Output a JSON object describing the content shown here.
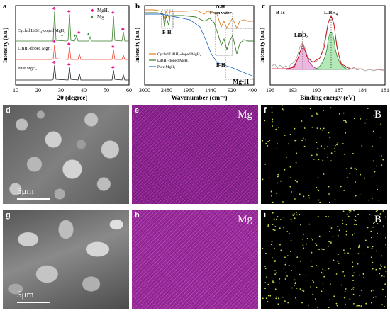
{
  "panels": {
    "a": {
      "label": "a",
      "ylabel": "Intensity (a.u.)",
      "xlabel": "2θ (degree)",
      "xticks": [
        "10",
        "20",
        "30",
        "40",
        "50",
        "60"
      ],
      "legend": [
        "MgH₂",
        "Mg"
      ],
      "series_labels": [
        "Cycled LiBH₄-doped MgH₂",
        "LiBH₄-doped MgH₂",
        "Pure MgH₂"
      ]
    },
    "b": {
      "label": "b",
      "ylabel": "Intensity (a.u.)",
      "xlabel": "Wavenumber (cm⁻¹)",
      "xticks": [
        "3000",
        "2480",
        "1960",
        "1440",
        "920",
        "400"
      ],
      "annotations": [
        "O-H",
        "From water",
        "B-H",
        "B-H",
        "Mg-H"
      ],
      "legend": [
        "Cycled LiBH₄-doped MgH₂",
        "LiBH₄-doped MgH₂",
        "Pure MgH₂"
      ]
    },
    "c": {
      "label": "c",
      "title": "B 1s",
      "ylabel": "Intensity (a.u.)",
      "xlabel": "Binding energy (eV)",
      "xticks": [
        "196",
        "193",
        "190",
        "187",
        "184",
        "181"
      ],
      "peaks": [
        "LiBO₂",
        "LiBH₄"
      ]
    },
    "d": {
      "label": "d",
      "scale": "5μm"
    },
    "e": {
      "label": "e",
      "element": "Mg"
    },
    "f": {
      "label": "f",
      "element": "B"
    },
    "g": {
      "label": "g",
      "scale": "5μm"
    },
    "h": {
      "label": "h",
      "element": "Mg"
    },
    "i": {
      "label": "i",
      "element": "B"
    }
  },
  "colors": {
    "black": "#1a1a1a",
    "red": "#e8412c",
    "green": "#3a7d2a",
    "orange": "#e07b1c",
    "blue": "#2a6fbf",
    "magenta": "#e0138a",
    "mg_green": "#2b8a3e",
    "libo2_fill": "#e6a0d6",
    "libh4_fill": "#9be09f",
    "mg_map": "#a0259a",
    "b_dot": "#c7d94a"
  }
}
